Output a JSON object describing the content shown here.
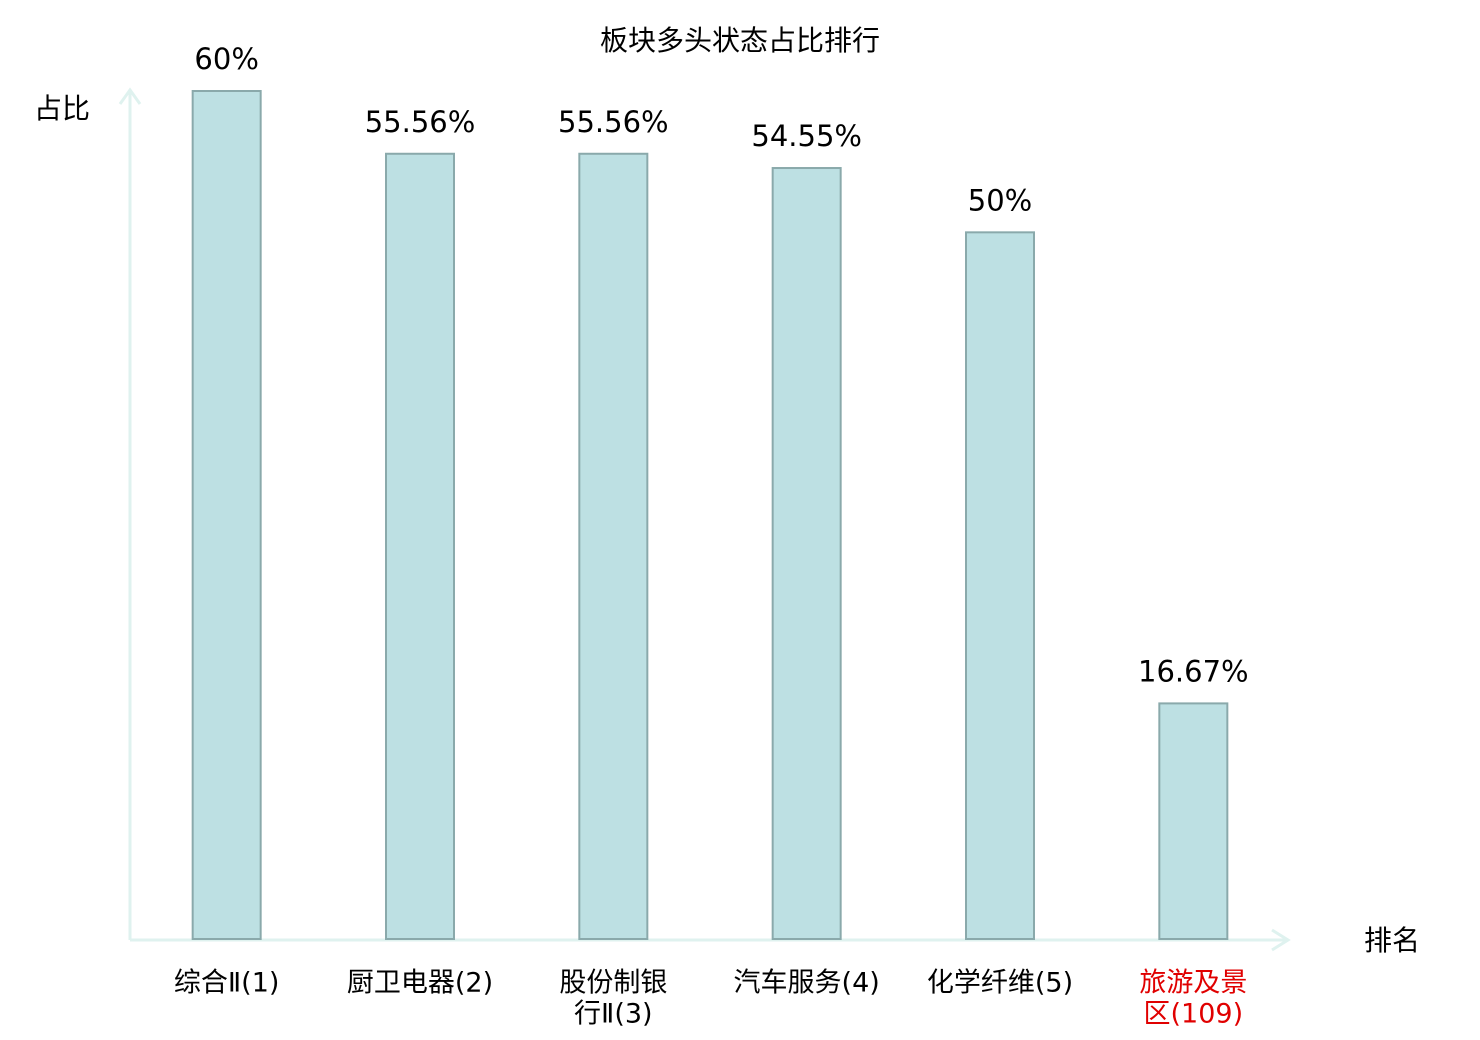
{
  "chart_data": {
    "type": "bar",
    "title": "板块多头状态占比排行",
    "y_label": "占比",
    "x_label": "排名",
    "categories": [
      [
        "综合Ⅱ(1)"
      ],
      [
        "厨卫电器(2)"
      ],
      [
        "股份制银",
        "行Ⅱ(3)"
      ],
      [
        "汽车服务(4)"
      ],
      [
        "化学纤维(5)"
      ],
      [
        "旅游及景",
        "区(109)"
      ]
    ],
    "category_colors": [
      "#000000",
      "#000000",
      "#000000",
      "#000000",
      "#000000",
      "#e00000"
    ],
    "values": [
      60,
      55.56,
      55.56,
      54.55,
      50,
      16.67
    ],
    "value_labels": [
      "60%",
      "55.56%",
      "55.56%",
      "54.55%",
      "50%",
      "16.67%"
    ],
    "color": "#bde0e3",
    "edge_color": "#8aa9ab",
    "ylim": [
      0,
      60
    ]
  }
}
